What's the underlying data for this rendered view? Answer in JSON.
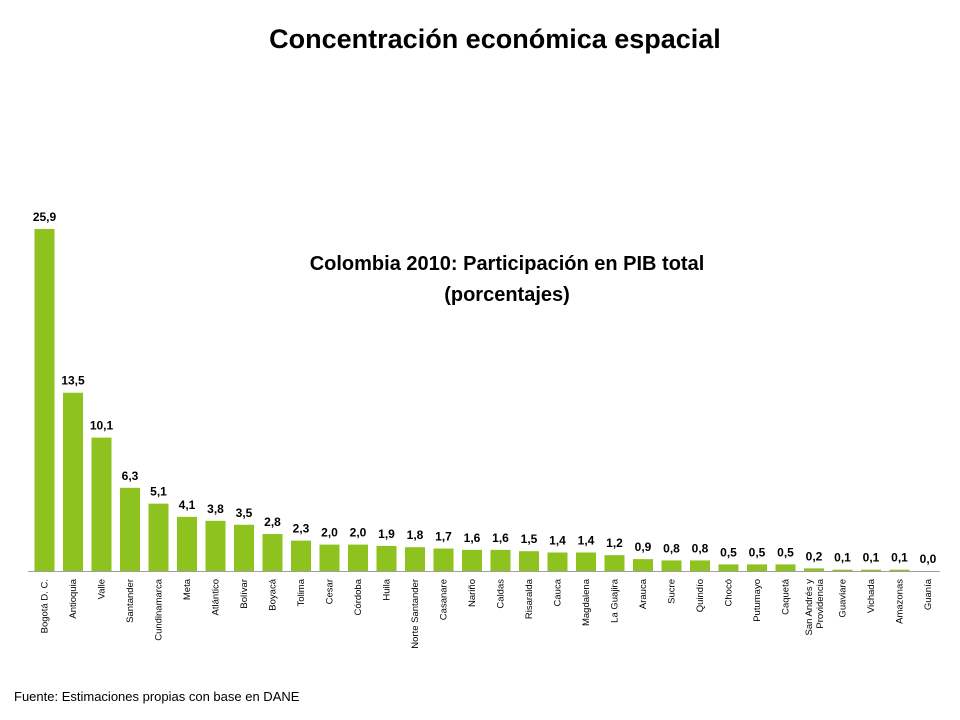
{
  "page": {
    "title": "Concentración económica espacial",
    "source": "Fuente: Estimaciones propias con base en DANE"
  },
  "chart_data": {
    "type": "bar",
    "title": "Colombia 2010: Participación en PIB total",
    "subtitle": "(porcentajes)",
    "xlabel": "",
    "ylabel": "",
    "ylim": [
      0,
      25.9
    ],
    "bar_color": "#8dc21f",
    "grid": false,
    "categories": [
      "Bogotá D. C.",
      "Antioquia",
      "Valle",
      "Santander",
      "Cundinamarca",
      "Meta",
      "Atlántico",
      "Bolívar",
      "Boyacá",
      "Tolima",
      "Cesar",
      "Córdoba",
      "Huila",
      "Norte Santander",
      "Casanare",
      "Nariño",
      "Caldas",
      "Risaralda",
      "Cauca",
      "Magdalena",
      "La Guajira",
      "Arauca",
      "Sucre",
      "Quindío",
      "Chocó",
      "Putumayo",
      "Caquetá",
      "San Andrés y Providencia",
      "Guaviare",
      "Vichada",
      "Amazonas",
      "Guanía"
    ],
    "values": [
      25.9,
      13.5,
      10.1,
      6.3,
      5.1,
      4.1,
      3.8,
      3.5,
      2.8,
      2.3,
      2.0,
      2.0,
      1.9,
      1.8,
      1.7,
      1.6,
      1.6,
      1.5,
      1.4,
      1.4,
      1.2,
      0.9,
      0.8,
      0.8,
      0.5,
      0.5,
      0.5,
      0.2,
      0.1,
      0.1,
      0.1,
      0.0
    ],
    "value_labels": [
      "25,9",
      "13,5",
      "10,1",
      "6,3",
      "5,1",
      "4,1",
      "3,8",
      "3,5",
      "2,8",
      "2,3",
      "2,0",
      "2,0",
      "1,9",
      "1,8",
      "1,7",
      "1,6",
      "1,6",
      "1,5",
      "1,4",
      "1,4",
      "1,2",
      "0,9",
      "0,8",
      "0,8",
      "0,5",
      "0,5",
      "0,5",
      "0,2",
      "0,1",
      "0,1",
      "0,1",
      "0,0"
    ]
  }
}
